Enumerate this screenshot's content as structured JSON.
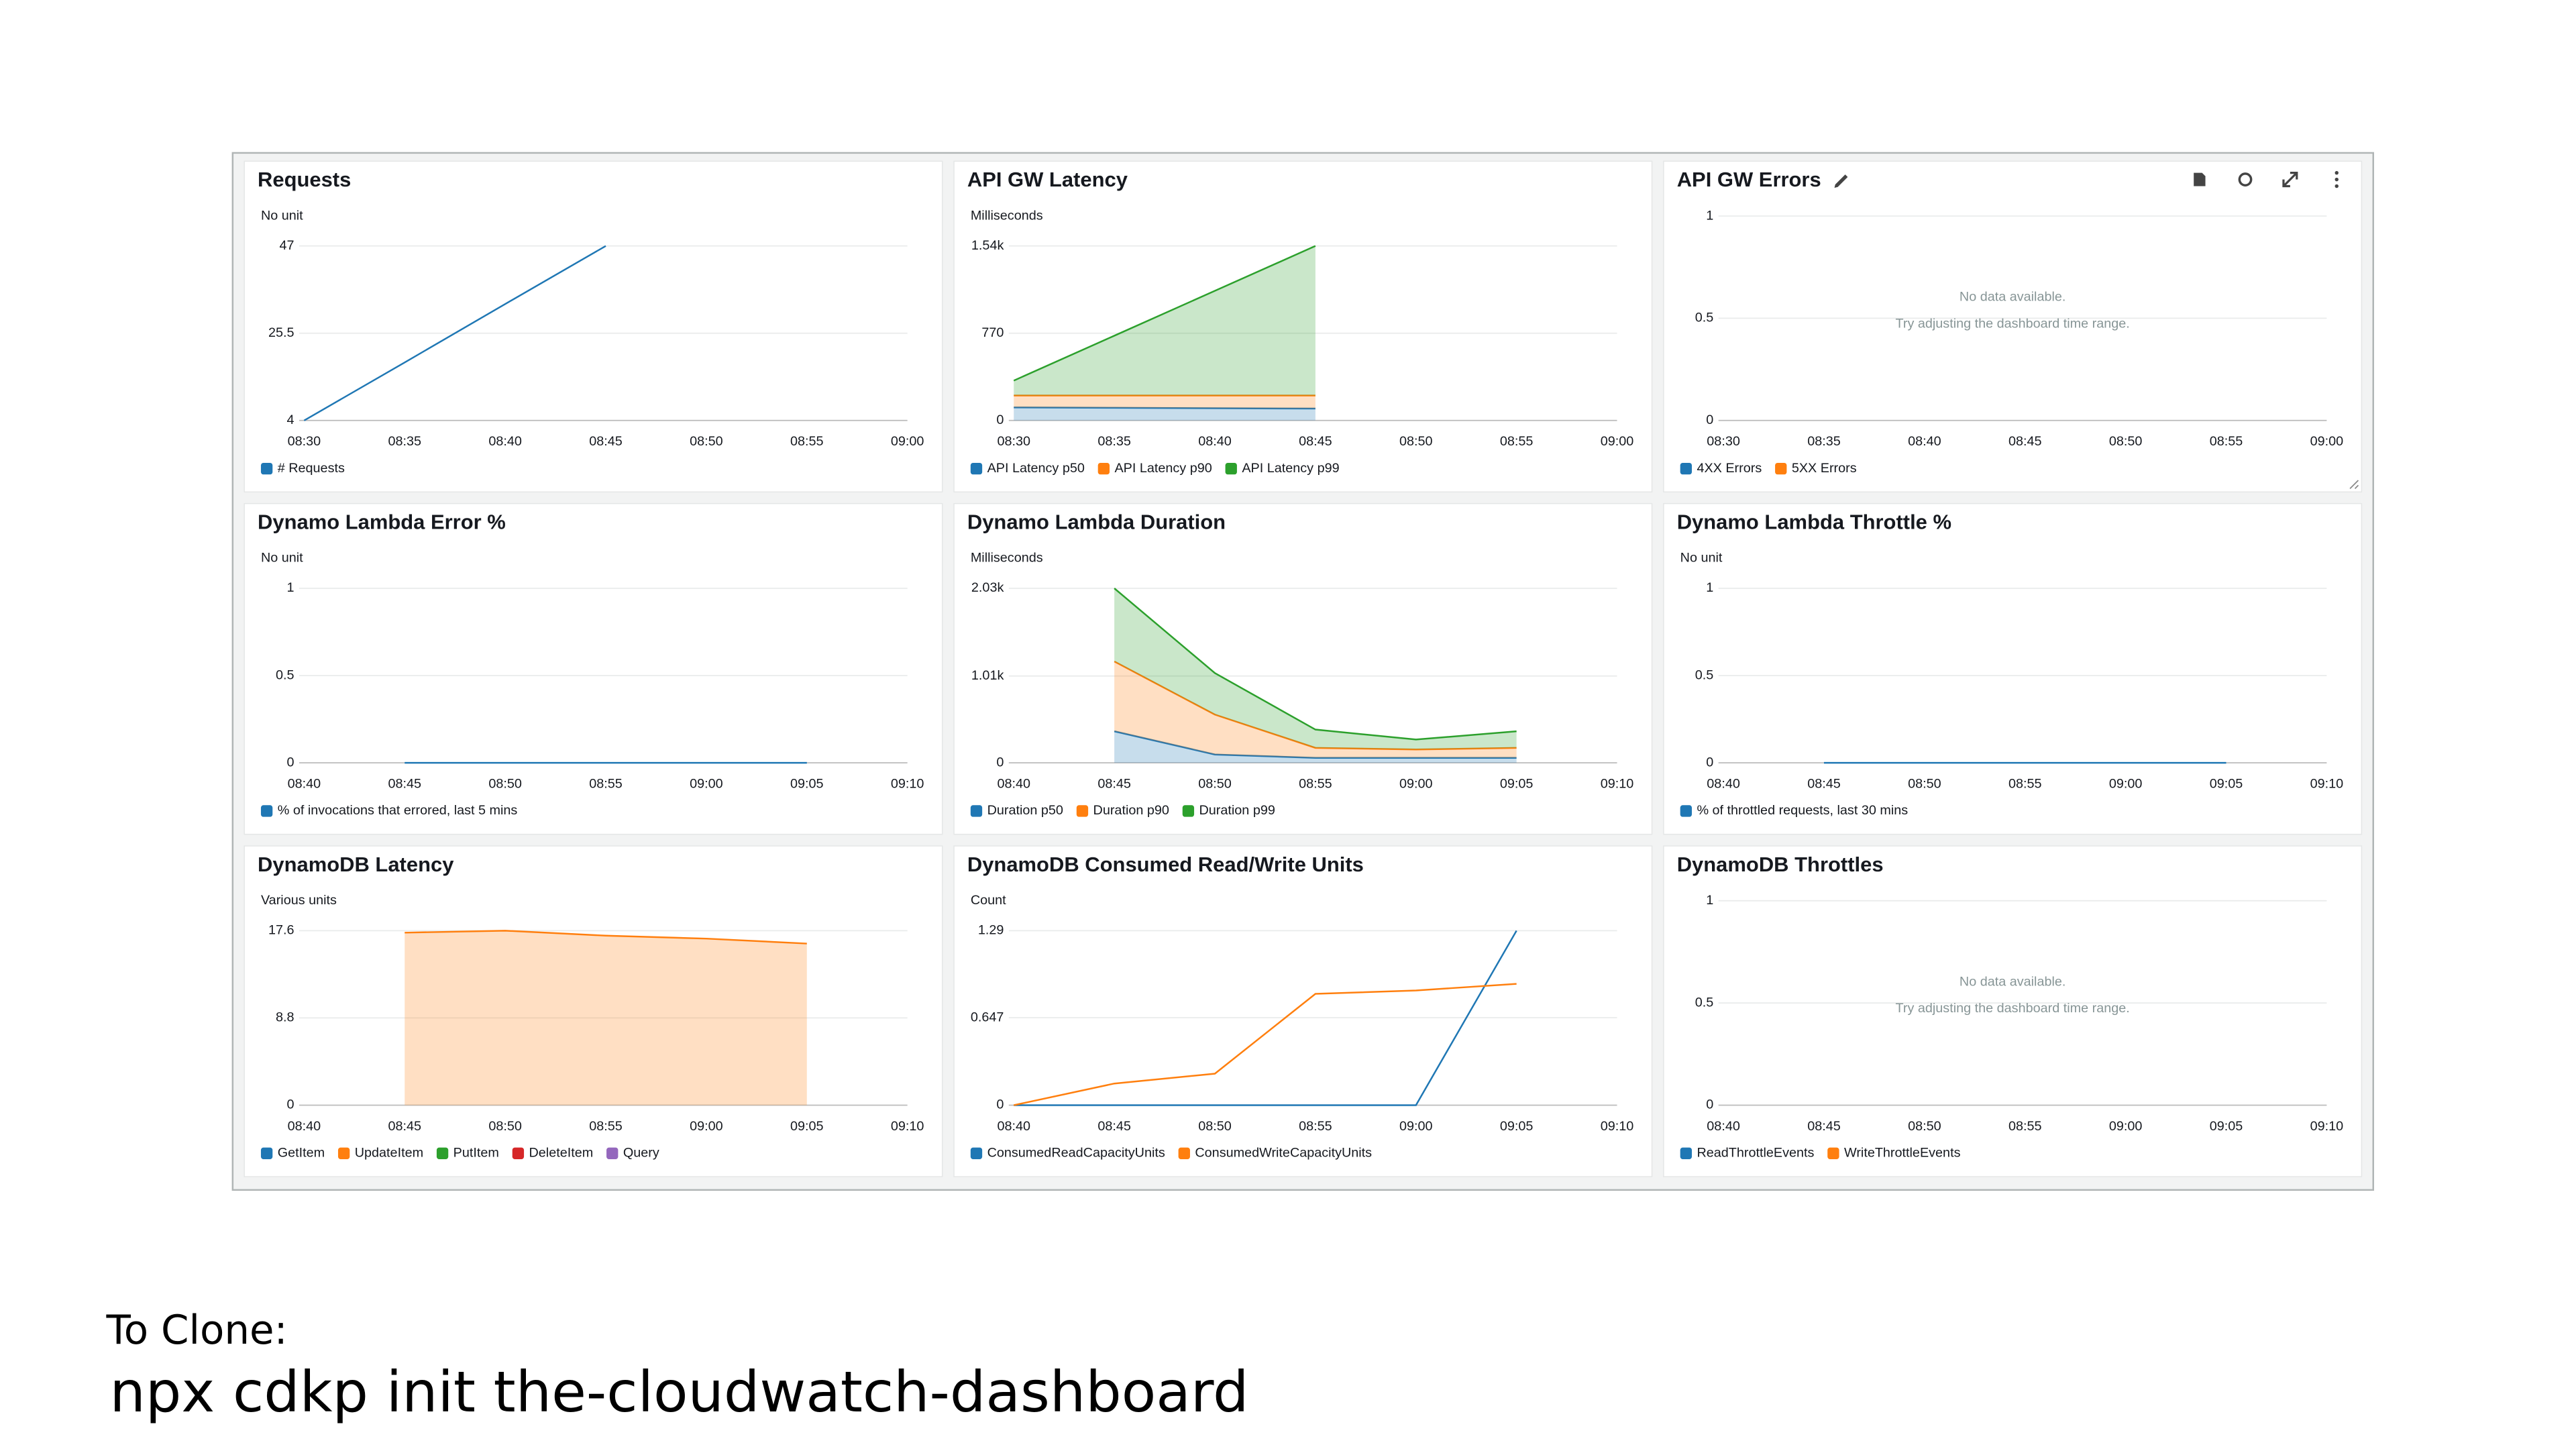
{
  "chart_data": [
    {
      "type": "line",
      "title": "Requests",
      "unit_label": "No unit",
      "categories": [
        "08:30",
        "08:35",
        "08:40",
        "08:45",
        "08:50",
        "08:55",
        "09:00"
      ],
      "series": [
        {
          "name": "# Requests",
          "color": "#1f77b4",
          "values": [
            4,
            18.3,
            32.7,
            47,
            null,
            null,
            null
          ]
        }
      ],
      "ylim": [
        4,
        47
      ],
      "yticks": [
        4,
        25.5,
        47
      ],
      "grid": true
    },
    {
      "type": "area",
      "stacked": true,
      "title": "API GW Latency",
      "unit_label": "Milliseconds",
      "categories": [
        "08:30",
        "08:35",
        "08:40",
        "08:45",
        "08:50",
        "08:55",
        "09:00"
      ],
      "series": [
        {
          "name": "API Latency p50",
          "color": "#1f77b4",
          "values": [
            115,
            112,
            108,
            105,
            null,
            null,
            null
          ]
        },
        {
          "name": "API Latency p90",
          "color": "#ff7f0e",
          "values": [
            105,
            108,
            112,
            115,
            null,
            null,
            null
          ]
        },
        {
          "name": "API Latency p99",
          "color": "#2ca02c",
          "values": [
            132,
            528,
            924,
            1320,
            null,
            null,
            null
          ]
        }
      ],
      "ylim": [
        0,
        1540
      ],
      "yticks": [
        0,
        770,
        {
          "value": 1540,
          "label": "1.54k"
        }
      ],
      "grid": true
    },
    {
      "type": "line",
      "title": "API GW Errors",
      "categories": [
        "08:30",
        "08:35",
        "08:40",
        "08:45",
        "08:50",
        "08:55",
        "09:00"
      ],
      "series": [
        {
          "name": "4XX Errors",
          "color": "#1f77b4",
          "values": [
            null,
            null,
            null,
            null,
            null,
            null,
            null
          ]
        },
        {
          "name": "5XX Errors",
          "color": "#ff7f0e",
          "values": [
            null,
            null,
            null,
            null,
            null,
            null,
            null
          ]
        }
      ],
      "no_data": [
        "No data available.",
        "Try adjusting the dashboard time range."
      ],
      "ylim": [
        0,
        1
      ],
      "yticks": [
        0,
        0.5,
        1
      ],
      "grid": true
    },
    {
      "type": "line",
      "title": "Dynamo Lambda Error %",
      "unit_label": "No unit",
      "categories": [
        "08:40",
        "08:45",
        "08:50",
        "08:55",
        "09:00",
        "09:05",
        "09:10"
      ],
      "series": [
        {
          "name": "% of invocations that errored, last 5 mins",
          "color": "#1f77b4",
          "values": [
            null,
            0,
            0,
            0,
            0,
            0,
            null
          ]
        }
      ],
      "ylim": [
        0,
        1
      ],
      "yticks": [
        0,
        0.5,
        1
      ],
      "grid": true
    },
    {
      "type": "area",
      "stacked": true,
      "title": "Dynamo Lambda Duration",
      "unit_label": "Milliseconds",
      "categories": [
        "08:40",
        "08:45",
        "08:50",
        "08:55",
        "09:00",
        "09:05",
        "09:10"
      ],
      "series": [
        {
          "name": "Duration p50",
          "color": "#1f77b4",
          "values": [
            null,
            367,
            97,
            58,
            58,
            58,
            null
          ]
        },
        {
          "name": "Duration p90",
          "color": "#ff7f0e",
          "values": [
            null,
            812,
            464,
            116,
            97,
            116,
            null
          ]
        },
        {
          "name": "Duration p99",
          "color": "#2ca02c",
          "values": [
            null,
            851,
            483,
            213,
            116,
            193,
            null
          ]
        }
      ],
      "ylim": [
        0,
        2030
      ],
      "yticks": [
        0,
        {
          "value": 1010,
          "label": "1.01k"
        },
        {
          "value": 2030,
          "label": "2.03k"
        }
      ],
      "grid": true
    },
    {
      "type": "line",
      "title": "Dynamo Lambda Throttle %",
      "unit_label": "No unit",
      "categories": [
        "08:40",
        "08:45",
        "08:50",
        "08:55",
        "09:00",
        "09:05",
        "09:10"
      ],
      "series": [
        {
          "name": "% of throttled requests, last 30 mins",
          "color": "#1f77b4",
          "values": [
            null,
            0,
            0,
            0,
            0,
            0,
            null
          ]
        }
      ],
      "ylim": [
        0,
        1
      ],
      "yticks": [
        0,
        0.5,
        1
      ],
      "grid": true
    },
    {
      "type": "area",
      "stacked": true,
      "title": "DynamoDB Latency",
      "unit_label": "Various units",
      "categories": [
        "08:40",
        "08:45",
        "08:50",
        "08:55",
        "09:00",
        "09:05",
        "09:10"
      ],
      "series": [
        {
          "name": "GetItem",
          "color": "#1f77b4",
          "values": [
            null,
            null,
            null,
            null,
            null,
            null,
            null
          ]
        },
        {
          "name": "UpdateItem",
          "color": "#ff7f0e",
          "values": [
            null,
            17.4,
            17.6,
            17.1,
            16.8,
            16.3,
            null
          ]
        },
        {
          "name": "PutItem",
          "color": "#2ca02c",
          "values": [
            null,
            null,
            null,
            null,
            null,
            null,
            null
          ]
        },
        {
          "name": "DeleteItem",
          "color": "#d62728",
          "values": [
            null,
            null,
            null,
            null,
            null,
            null,
            null
          ]
        },
        {
          "name": "Query",
          "color": "#9467bd",
          "values": [
            null,
            null,
            null,
            null,
            null,
            null,
            null
          ]
        }
      ],
      "ylim": [
        0,
        17.6
      ],
      "yticks": [
        0,
        8.8,
        17.6
      ],
      "grid": true
    },
    {
      "type": "line",
      "title": "DynamoDB Consumed Read/Write Units",
      "unit_label": "Count",
      "categories": [
        "08:40",
        "08:45",
        "08:50",
        "08:55",
        "09:00",
        "09:05",
        "09:10"
      ],
      "series": [
        {
          "name": "ConsumedReadCapacityUnits",
          "color": "#1f77b4",
          "values": [
            0,
            0,
            0,
            0,
            0,
            1.29,
            null
          ]
        },
        {
          "name": "ConsumedWriteCapacityUnits",
          "color": "#ff7f0e",
          "values": [
            0,
            0.16,
            0.233,
            0.823,
            0.848,
            0.897,
            null
          ]
        }
      ],
      "ylim": [
        0,
        1.29
      ],
      "yticks": [
        0,
        0.647,
        1.29
      ],
      "grid": true
    },
    {
      "type": "line",
      "title": "DynamoDB Throttles",
      "categories": [
        "08:40",
        "08:45",
        "08:50",
        "08:55",
        "09:00",
        "09:05",
        "09:10"
      ],
      "series": [
        {
          "name": "ReadThrottleEvents",
          "color": "#1f77b4",
          "values": [
            null,
            null,
            null,
            null,
            null,
            null,
            null
          ]
        },
        {
          "name": "WriteThrottleEvents",
          "color": "#ff7f0e",
          "values": [
            null,
            null,
            null,
            null,
            null,
            null,
            null
          ]
        }
      ],
      "no_data": [
        "No data available.",
        "Try adjusting the dashboard time range."
      ],
      "ylim": [
        0,
        1
      ],
      "yticks": [
        0,
        0.5,
        1
      ],
      "grid": true
    }
  ],
  "footer": {
    "label": "To Clone:",
    "command": "npx cdkp init the-cloudwatch-dashboard"
  }
}
